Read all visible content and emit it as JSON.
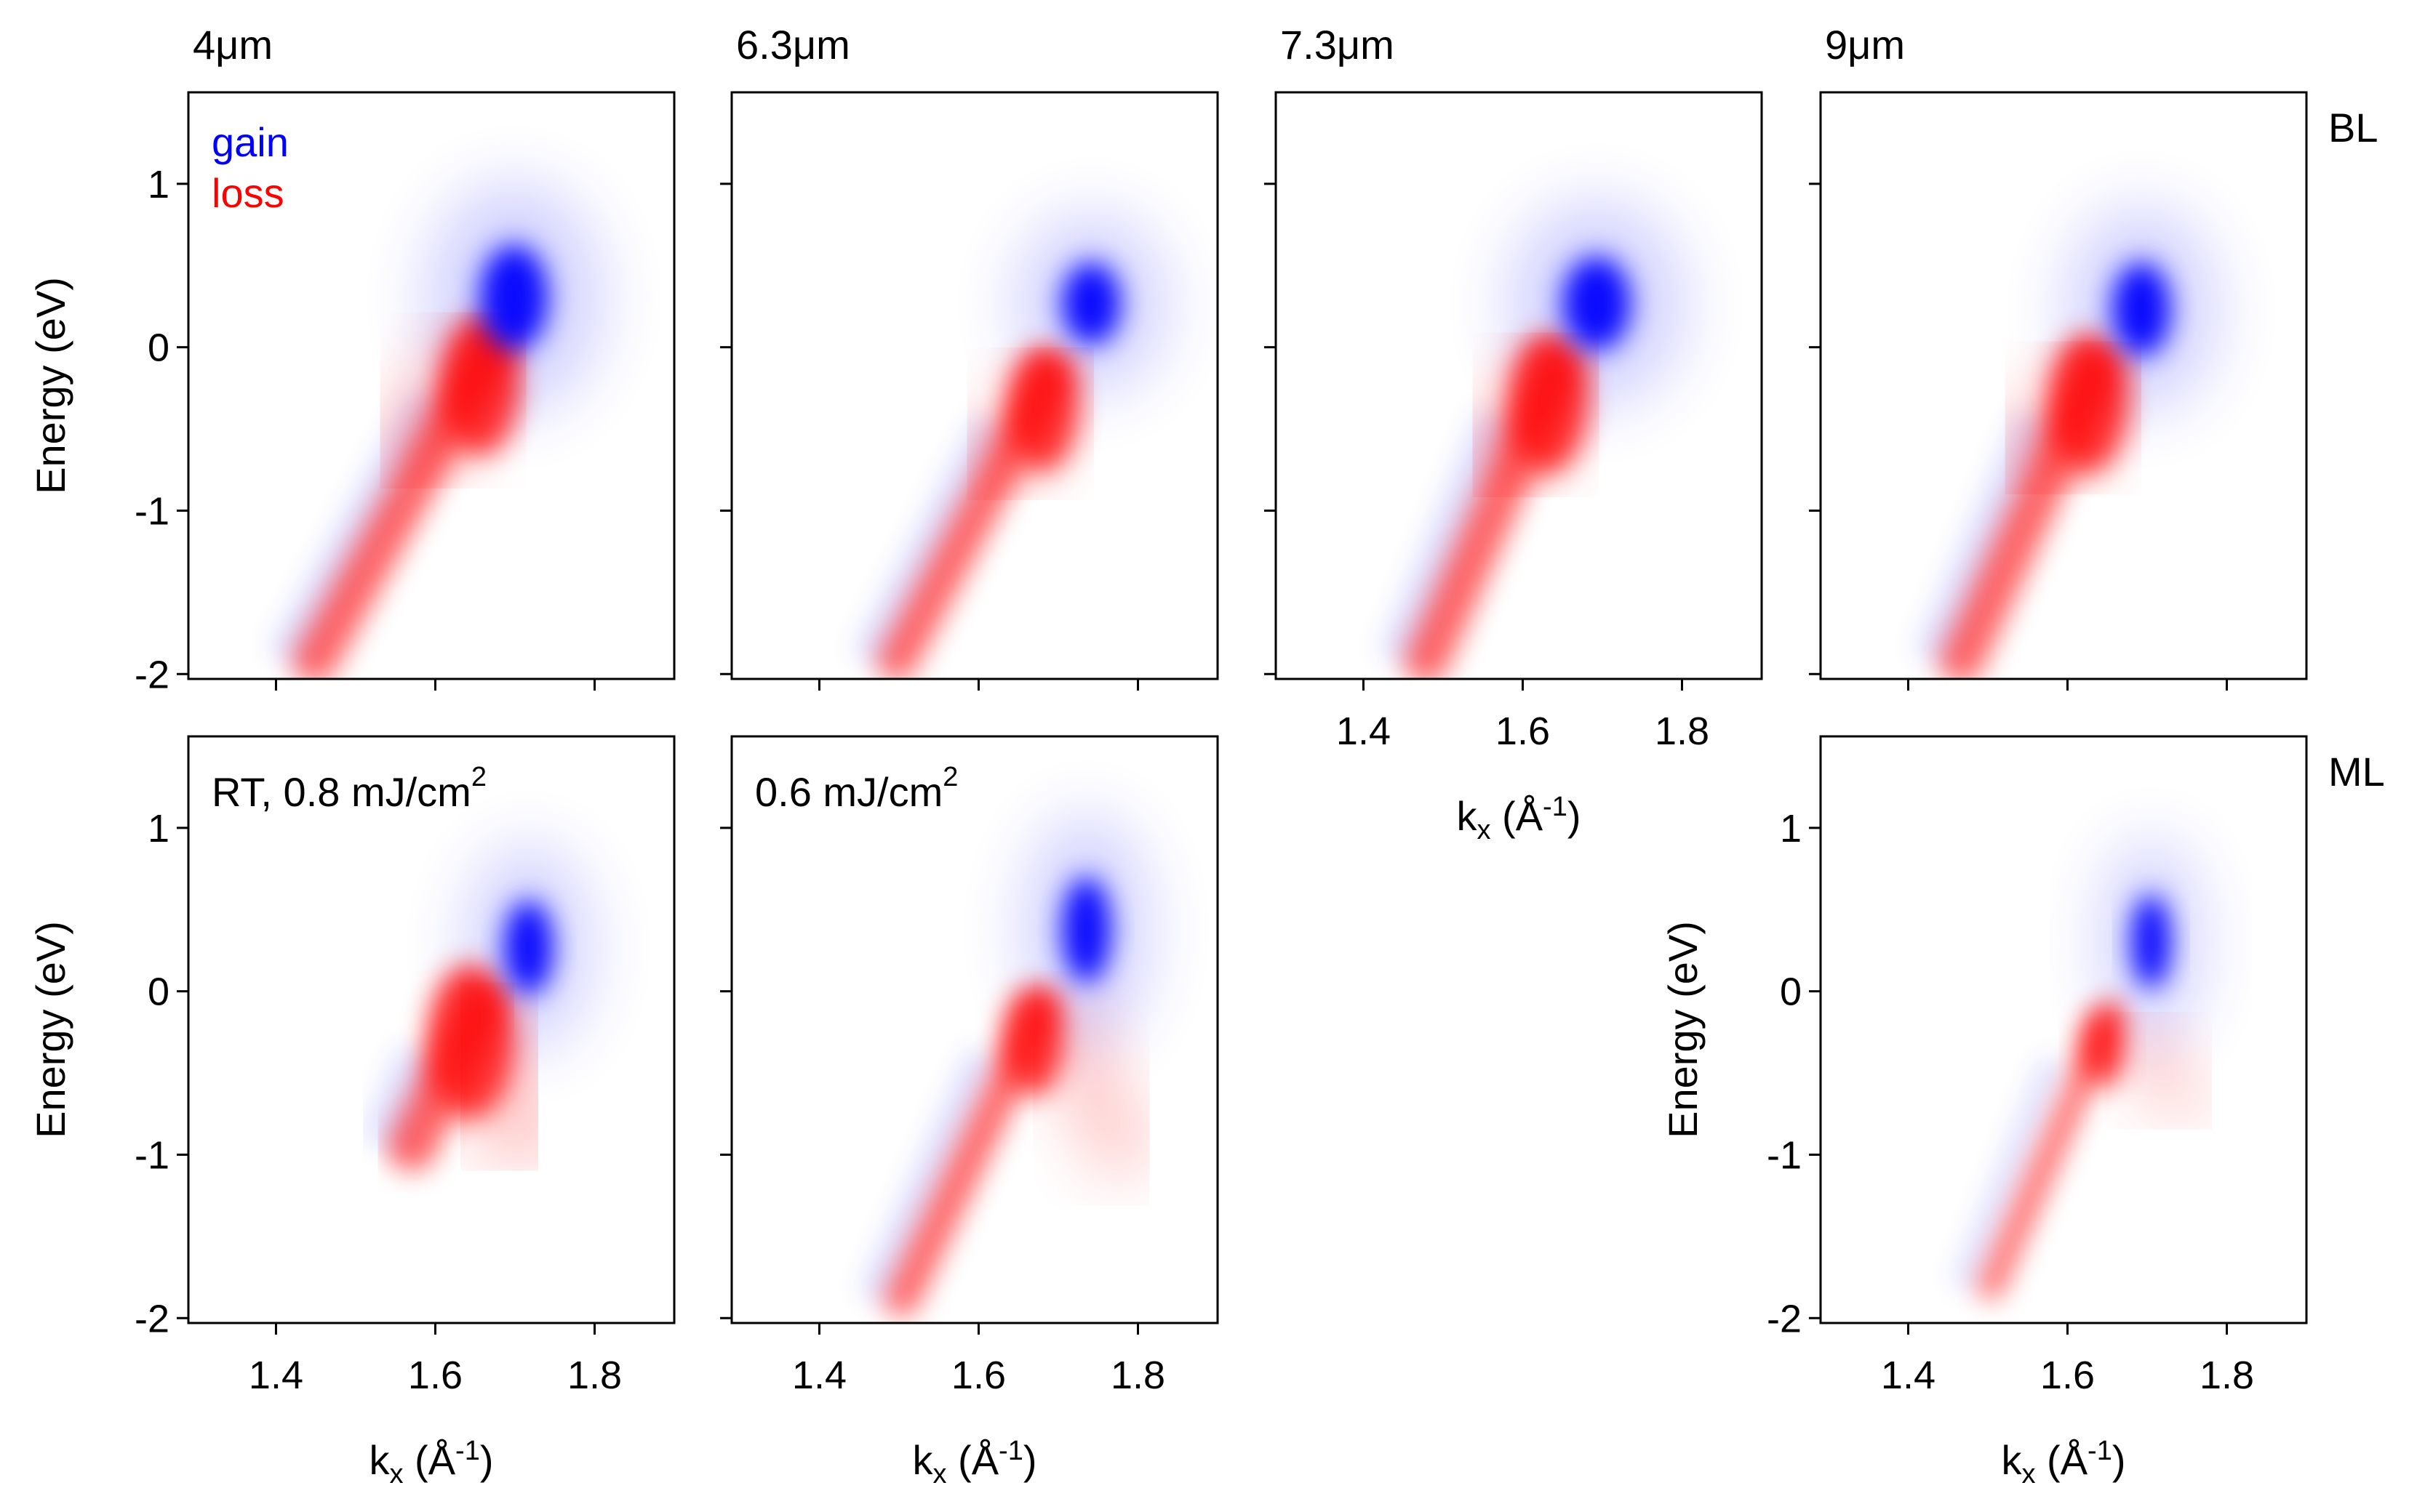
{
  "chart_data": [
    {
      "type": "heatmap",
      "title": "4μm",
      "ylabel": "Energy (eV)",
      "xlim": [
        1.29,
        1.9
      ],
      "ylim": [
        -2.03,
        1.56
      ],
      "xticks": [
        1.4,
        1.6,
        1.8
      ],
      "yticks": [
        -2,
        -1,
        0,
        1
      ],
      "show_xticklabels": false,
      "show_yticklabels": true,
      "annotations": [
        {
          "text": "gain",
          "color": "#0000ff"
        },
        {
          "text": "loss",
          "color": "#ff0000"
        }
      ]
    },
    {
      "type": "heatmap",
      "title": "6.3μm",
      "xlim": [
        1.29,
        1.9
      ],
      "ylim": [
        -2.03,
        1.56
      ],
      "xticks": [
        1.4,
        1.6,
        1.8
      ],
      "yticks": [
        -2,
        -1,
        0,
        1
      ],
      "show_xticklabels": false,
      "show_yticklabels": false
    },
    {
      "type": "heatmap",
      "title": "7.3μm",
      "xlabel": [
        "k",
        "x",
        " (Å",
        "-1",
        ")"
      ],
      "xlim": [
        1.29,
        1.9
      ],
      "ylim": [
        -2.03,
        1.56
      ],
      "xticks": [
        1.4,
        1.6,
        1.8
      ],
      "yticks": [
        -2,
        -1,
        0,
        1
      ],
      "show_xticklabels": true,
      "show_yticklabels": false
    },
    {
      "type": "heatmap",
      "title": "9μm",
      "row_label": "BL",
      "xlim": [
        1.29,
        1.9
      ],
      "ylim": [
        -2.03,
        1.56
      ],
      "xticks": [
        1.4,
        1.6,
        1.8
      ],
      "yticks": [
        -2,
        -1,
        0,
        1
      ],
      "show_xticklabels": false,
      "show_yticklabels": false
    },
    {
      "type": "heatmap",
      "annotation": [
        "RT, 0.8 mJ/cm",
        "2"
      ],
      "ylabel": "Energy (eV)",
      "xlabel": [
        "k",
        "x",
        " (Å",
        "-1",
        ")"
      ],
      "xlim": [
        1.29,
        1.9
      ],
      "ylim": [
        -2.03,
        1.56
      ],
      "xticks": [
        1.4,
        1.6,
        1.8
      ],
      "yticks": [
        -2,
        -1,
        0,
        1
      ],
      "show_xticklabels": true,
      "show_yticklabels": true
    },
    {
      "type": "heatmap",
      "annotation": [
        "0.6 mJ/cm",
        "2"
      ],
      "xlabel": [
        "k",
        "x",
        " (Å",
        "-1",
        ")"
      ],
      "xlim": [
        1.29,
        1.9
      ],
      "ylim": [
        -2.03,
        1.56
      ],
      "xticks": [
        1.4,
        1.6,
        1.8
      ],
      "yticks": [
        -2,
        -1,
        0,
        1
      ],
      "show_xticklabels": true,
      "show_yticklabels": false
    },
    {
      "type": "heatmap",
      "row_label": "ML",
      "ylabel": "Energy (eV)",
      "xlabel": [
        "k",
        "x",
        " (Å",
        "-1",
        ")"
      ],
      "xlim": [
        1.29,
        1.9
      ],
      "ylim": [
        -2.03,
        1.56
      ],
      "xticks": [
        1.4,
        1.6,
        1.8
      ],
      "yticks": [
        -2,
        -1,
        0,
        1
      ],
      "show_xticklabels": true,
      "show_yticklabels": true
    }
  ]
}
